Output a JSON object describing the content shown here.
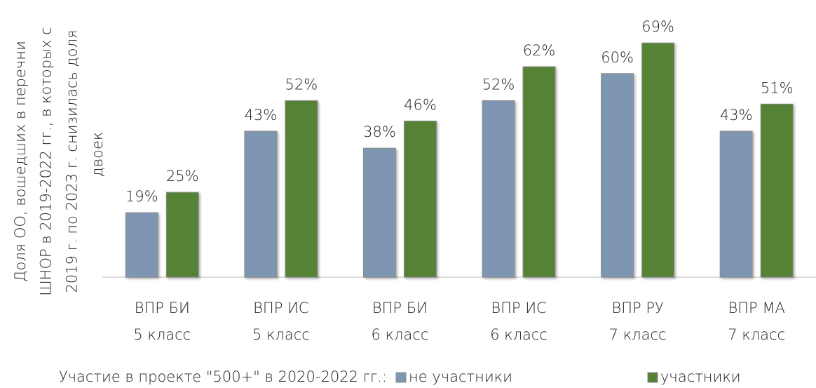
{
  "chart_data": {
    "type": "bar",
    "y_label": [
      "Доля ОО, вошедших в перечни",
      "ШНОР в 2019-2022 гг., в которых с",
      "2019 г. по 2023 г. снизилась доля",
      "двоек"
    ],
    "categories": [
      [
        "ВПР БИ",
        "5 класс"
      ],
      [
        "ВПР ИС",
        "5 класс"
      ],
      [
        "ВПР БИ",
        "6 класс"
      ],
      [
        "ВПР ИС",
        "6 класс"
      ],
      [
        "ВПР РУ",
        "7 класс"
      ],
      [
        "ВПР МА",
        "7 класс"
      ]
    ],
    "legend_title": "Участие в проекте \"500+\" в 2020-2022 гг.:",
    "series": [
      {
        "name": "не участники",
        "color": "#7f96b2",
        "values": [
          19,
          43,
          38,
          52,
          60,
          43
        ],
        "value_labels": [
          "19%",
          "43%",
          "38%",
          "52%",
          "60%",
          "43%"
        ]
      },
      {
        "name": "участники",
        "color": "#548235",
        "values": [
          25,
          52,
          46,
          62,
          69,
          51
        ],
        "value_labels": [
          "25%",
          "52%",
          "46%",
          "62%",
          "69%",
          "51%"
        ]
      }
    ],
    "ylim": [
      0,
      80
    ],
    "legend": "bottom"
  }
}
